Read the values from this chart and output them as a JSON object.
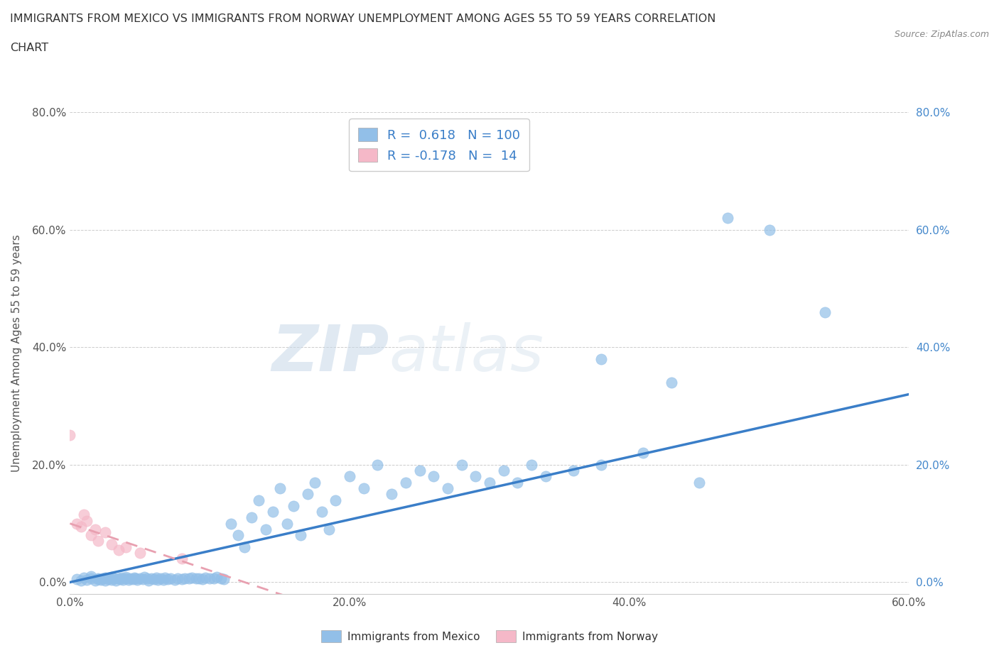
{
  "title_line1": "IMMIGRANTS FROM MEXICO VS IMMIGRANTS FROM NORWAY UNEMPLOYMENT AMONG AGES 55 TO 59 YEARS CORRELATION",
  "title_line2": "CHART",
  "source": "Source: ZipAtlas.com",
  "ylabel": "Unemployment Among Ages 55 to 59 years",
  "xlim": [
    0.0,
    0.6
  ],
  "ylim": [
    -0.02,
    0.8
  ],
  "xtick_labels": [
    "0.0%",
    "20.0%",
    "40.0%",
    "60.0%"
  ],
  "ytick_labels": [
    "0.0%",
    "20.0%",
    "40.0%",
    "60.0%",
    "80.0%"
  ],
  "xtick_vals": [
    0.0,
    0.2,
    0.4,
    0.6
  ],
  "ytick_vals": [
    0.0,
    0.2,
    0.4,
    0.6,
    0.8
  ],
  "mexico_color": "#92bfe8",
  "norway_color": "#f5b8c8",
  "mexico_R": 0.618,
  "mexico_N": 100,
  "norway_R": -0.178,
  "norway_N": 14,
  "legend_label_mexico": "Immigrants from Mexico",
  "legend_label_norway": "Immigrants from Norway",
  "watermark_zip": "ZIP",
  "watermark_atlas": "atlas",
  "mexico_line_color": "#3a7ec8",
  "norway_line_color": "#e8a0b0",
  "mexico_scatter_x": [
    0.005,
    0.008,
    0.01,
    0.012,
    0.015,
    0.015,
    0.018,
    0.02,
    0.02,
    0.022,
    0.023,
    0.025,
    0.025,
    0.027,
    0.028,
    0.03,
    0.03,
    0.032,
    0.033,
    0.035,
    0.036,
    0.037,
    0.038,
    0.04,
    0.04,
    0.042,
    0.043,
    0.045,
    0.046,
    0.047,
    0.048,
    0.05,
    0.052,
    0.053,
    0.055,
    0.056,
    0.058,
    0.06,
    0.062,
    0.063,
    0.065,
    0.067,
    0.068,
    0.07,
    0.072,
    0.075,
    0.077,
    0.08,
    0.082,
    0.085,
    0.087,
    0.09,
    0.092,
    0.095,
    0.097,
    0.1,
    0.103,
    0.105,
    0.108,
    0.11,
    0.115,
    0.12,
    0.125,
    0.13,
    0.135,
    0.14,
    0.145,
    0.15,
    0.155,
    0.16,
    0.165,
    0.17,
    0.175,
    0.18,
    0.185,
    0.19,
    0.2,
    0.21,
    0.22,
    0.23,
    0.24,
    0.25,
    0.26,
    0.27,
    0.28,
    0.29,
    0.3,
    0.31,
    0.32,
    0.33,
    0.34,
    0.36,
    0.38,
    0.38,
    0.41,
    0.43,
    0.45,
    0.47,
    0.5,
    0.54
  ],
  "mexico_scatter_y": [
    0.005,
    0.003,
    0.008,
    0.004,
    0.006,
    0.01,
    0.003,
    0.005,
    0.007,
    0.004,
    0.006,
    0.003,
    0.008,
    0.005,
    0.007,
    0.004,
    0.009,
    0.006,
    0.003,
    0.007,
    0.005,
    0.008,
    0.004,
    0.006,
    0.009,
    0.004,
    0.007,
    0.005,
    0.008,
    0.006,
    0.004,
    0.007,
    0.005,
    0.009,
    0.006,
    0.003,
    0.007,
    0.005,
    0.008,
    0.004,
    0.006,
    0.004,
    0.008,
    0.005,
    0.007,
    0.004,
    0.006,
    0.005,
    0.007,
    0.006,
    0.008,
    0.006,
    0.007,
    0.005,
    0.008,
    0.007,
    0.006,
    0.009,
    0.007,
    0.005,
    0.1,
    0.08,
    0.06,
    0.11,
    0.14,
    0.09,
    0.12,
    0.16,
    0.1,
    0.13,
    0.08,
    0.15,
    0.17,
    0.12,
    0.09,
    0.14,
    0.18,
    0.16,
    0.2,
    0.15,
    0.17,
    0.19,
    0.18,
    0.16,
    0.2,
    0.18,
    0.17,
    0.19,
    0.17,
    0.2,
    0.18,
    0.19,
    0.2,
    0.38,
    0.22,
    0.34,
    0.17,
    0.62,
    0.6,
    0.46
  ],
  "norway_scatter_x": [
    0.0,
    0.005,
    0.008,
    0.01,
    0.012,
    0.015,
    0.018,
    0.02,
    0.025,
    0.03,
    0.035,
    0.04,
    0.05,
    0.08
  ],
  "norway_scatter_y": [
    0.25,
    0.1,
    0.095,
    0.115,
    0.105,
    0.08,
    0.09,
    0.07,
    0.085,
    0.065,
    0.055,
    0.06,
    0.05,
    0.04
  ]
}
